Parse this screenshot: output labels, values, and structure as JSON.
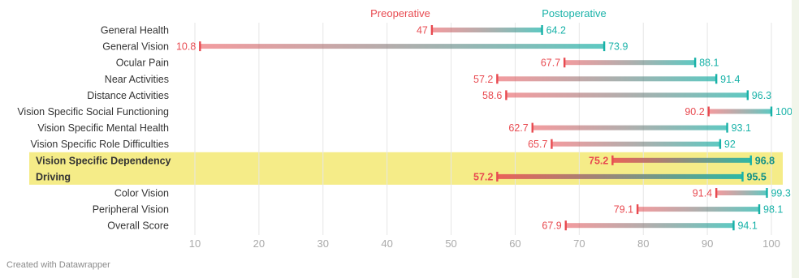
{
  "chart_data": {
    "type": "range-dot",
    "legend": {
      "pre": "Preoperative",
      "post": "Postoperative"
    },
    "colors": {
      "pre": "#e84a50",
      "post": "#18b2a8",
      "highlight": "#f5ec88",
      "label": "#333333",
      "tick": "#aaaaaa",
      "grid": "#e6e6e6"
    },
    "categories": [
      "General Health",
      "General Vision",
      "Ocular Pain",
      "Near Activities",
      "Distance Activities",
      "Vision Specific Social Functioning",
      "Vision Specific Mental Health",
      "Vision Specific Role Difficulties",
      "Vision Specific Dependency",
      "Driving",
      "Color Vision",
      "Peripheral Vision",
      "Overall Score"
    ],
    "series": [
      {
        "name": "Preoperative",
        "values": [
          47,
          10.8,
          67.7,
          57.2,
          58.6,
          90.2,
          62.7,
          65.7,
          75.2,
          57.2,
          91.4,
          79.1,
          67.9
        ]
      },
      {
        "name": "Postoperative",
        "values": [
          64.2,
          73.9,
          88.1,
          91.4,
          96.3,
          100,
          93.1,
          92,
          96.8,
          95.5,
          99.3,
          98.1,
          94.1
        ]
      }
    ],
    "highlighted": [
      "Vision Specific Dependency",
      "Driving"
    ],
    "xticks": [
      10,
      20,
      30,
      40,
      50,
      60,
      70,
      80,
      90,
      100
    ],
    "xlim": [
      7,
      102
    ],
    "grid": true
  },
  "footer": "Created with Datawrapper"
}
